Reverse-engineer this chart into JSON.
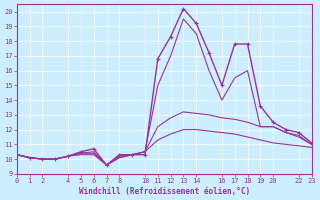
{
  "xlabel": "Windchill (Refroidissement éolien,°C)",
  "bg_color": "#cceeff",
  "line_color": "#993399",
  "grid_color": "#ffffff",
  "xlim": [
    0,
    23
  ],
  "ylim": [
    9,
    20.5
  ],
  "yticks": [
    9,
    10,
    11,
    12,
    13,
    14,
    15,
    16,
    17,
    18,
    19,
    20
  ],
  "xticks": [
    0,
    1,
    2,
    4,
    5,
    6,
    7,
    8,
    10,
    11,
    12,
    13,
    14,
    16,
    17,
    18,
    19,
    20,
    22,
    23
  ],
  "lines": [
    {
      "x": [
        0,
        1,
        2,
        3,
        4,
        5,
        6,
        7,
        8,
        9,
        10,
        11,
        12,
        13,
        14,
        15,
        16,
        17,
        18,
        19,
        20,
        21,
        22,
        23
      ],
      "y": [
        10.3,
        10.1,
        10.0,
        10.0,
        10.2,
        10.5,
        10.7,
        9.6,
        10.3,
        10.3,
        10.3,
        16.8,
        18.3,
        20.2,
        19.2,
        17.2,
        15.0,
        17.8,
        17.8,
        13.6,
        12.5,
        12.0,
        11.8,
        11.1
      ],
      "marker": "+",
      "lw": 1.0
    },
    {
      "x": [
        0,
        1,
        2,
        3,
        4,
        5,
        6,
        7,
        8,
        9,
        10,
        11,
        12,
        13,
        14,
        15,
        16,
        17,
        18,
        19,
        20,
        21,
        22,
        23
      ],
      "y": [
        10.3,
        10.1,
        10.0,
        10.0,
        10.2,
        10.4,
        10.5,
        9.6,
        10.2,
        10.3,
        10.5,
        15.0,
        17.0,
        19.5,
        18.5,
        16.0,
        14.0,
        15.5,
        16.0,
        12.2,
        12.2,
        11.8,
        11.6,
        11.0
      ],
      "marker": null,
      "lw": 0.8
    },
    {
      "x": [
        0,
        1,
        2,
        3,
        4,
        5,
        6,
        7,
        8,
        9,
        10,
        11,
        12,
        13,
        14,
        15,
        16,
        17,
        18,
        19,
        20,
        21,
        22,
        23
      ],
      "y": [
        10.3,
        10.1,
        10.0,
        10.0,
        10.2,
        10.4,
        10.4,
        9.6,
        10.1,
        10.3,
        10.5,
        12.2,
        12.8,
        13.2,
        13.1,
        13.0,
        12.8,
        12.7,
        12.5,
        12.2,
        12.2,
        11.8,
        11.5,
        11.0
      ],
      "marker": null,
      "lw": 0.8
    },
    {
      "x": [
        0,
        1,
        2,
        3,
        4,
        5,
        6,
        7,
        8,
        9,
        10,
        11,
        12,
        13,
        14,
        15,
        16,
        17,
        18,
        19,
        20,
        21,
        22,
        23
      ],
      "y": [
        10.3,
        10.1,
        10.0,
        10.0,
        10.2,
        10.3,
        10.3,
        9.6,
        10.1,
        10.3,
        10.5,
        11.3,
        11.7,
        12.0,
        12.0,
        11.9,
        11.8,
        11.7,
        11.5,
        11.3,
        11.1,
        11.0,
        10.9,
        10.8
      ],
      "marker": null,
      "lw": 0.8
    }
  ]
}
